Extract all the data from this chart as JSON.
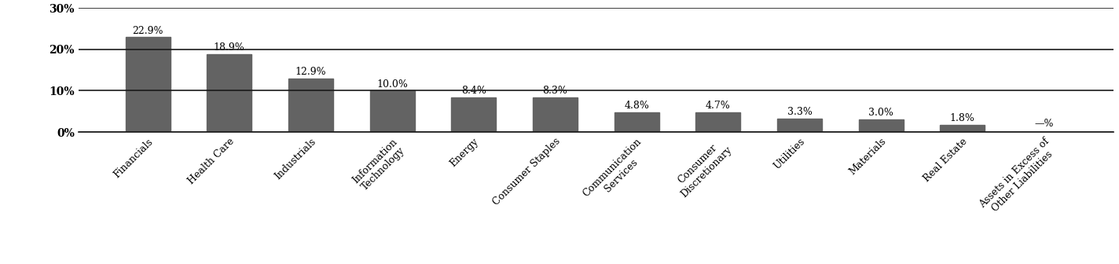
{
  "categories": [
    "Financials",
    "Health Care",
    "Industrials",
    "Information\nTechnology",
    "Energy",
    "Consumer Staples",
    "Communication\nServices",
    "Consumer\nDiscretionary",
    "Utilities",
    "Materials",
    "Real Estate",
    "Assets in Excess of\nOther Liabilities"
  ],
  "values": [
    22.9,
    18.9,
    12.9,
    10.0,
    8.4,
    8.3,
    4.8,
    4.7,
    3.3,
    3.0,
    1.8,
    0.0
  ],
  "labels": [
    "22.9%",
    "18.9%",
    "12.9%",
    "10.0%",
    "8.4%",
    "8.3%",
    "4.8%",
    "4.7%",
    "3.3%",
    "3.0%",
    "1.8%",
    "—%"
  ],
  "bar_color": "#636363",
  "background_color": "#ffffff",
  "ylim": [
    0,
    30
  ],
  "yticks": [
    0,
    10,
    20,
    30
  ],
  "ytick_labels": [
    "0%",
    "10%",
    "20%",
    "30%"
  ],
  "bar_width": 0.55,
  "label_fontsize": 9,
  "tick_fontsize": 10,
  "xlabel_fontsize": 9,
  "grid_color": "#1a1a1a",
  "grid_linewidth": 1.2
}
